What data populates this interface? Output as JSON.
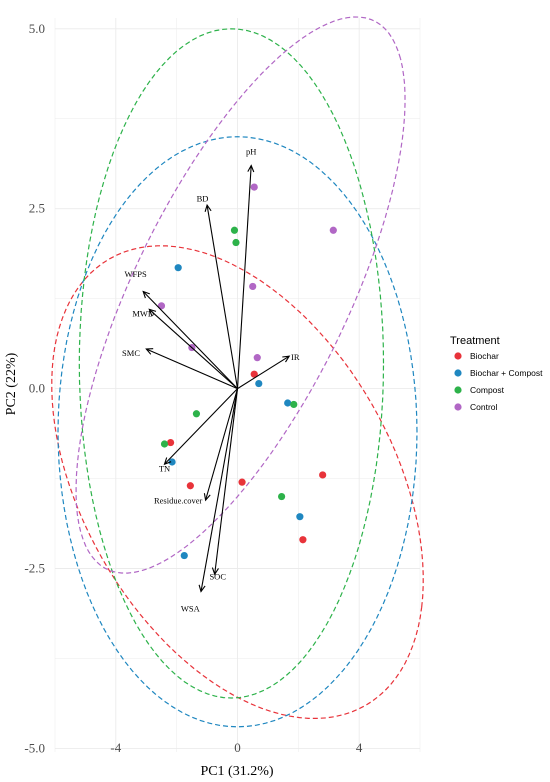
{
  "chart_data": {
    "type": "scatter",
    "subtype": "pca-biplot",
    "xlabel": "PC1 (31.2%)",
    "ylabel": "PC2 (22%)",
    "xlim": [
      -6.0,
      6.0
    ],
    "ylim": [
      -5.05,
      5.15
    ],
    "x_ticks": [
      -4,
      0,
      4
    ],
    "x_tick_labels": [
      "-4",
      "0",
      "4"
    ],
    "y_ticks": [
      5.0,
      2.5,
      0.0,
      -2.5,
      -5.0
    ],
    "y_tick_labels": [
      "5.0",
      "2.5",
      "0.0",
      "-2.5",
      "-5.0"
    ],
    "grid": true,
    "legend": {
      "title": "Treatment",
      "placement": "right",
      "entries": [
        "Biochar",
        "Biochar + Compost",
        "Compost",
        "Control"
      ]
    },
    "series": [
      {
        "name": "Biochar",
        "color": "#e8333a",
        "points": [
          [
            0.55,
            0.2
          ],
          [
            -2.2,
            -0.75
          ],
          [
            -1.55,
            -1.35
          ],
          [
            0.15,
            -1.3
          ],
          [
            2.8,
            -1.2
          ],
          [
            2.15,
            -2.1
          ]
        ],
        "ellipse": {
          "cx": 0.0,
          "cy": -1.3,
          "rx": 6.3,
          "ry": 2.9,
          "angle_deg": -16
        }
      },
      {
        "name": "Biochar + Compost",
        "color": "#1f87c0",
        "points": [
          [
            -1.95,
            1.68
          ],
          [
            0.7,
            0.07
          ],
          [
            1.65,
            -0.2
          ],
          [
            -2.15,
            -1.02
          ],
          [
            2.05,
            -1.78
          ],
          [
            -1.75,
            -2.32
          ]
        ],
        "ellipse": {
          "cx": 0.0,
          "cy": -0.6,
          "rx": 5.9,
          "ry": 4.1,
          "angle_deg": 0
        }
      },
      {
        "name": "Compost",
        "color": "#2db24a",
        "points": [
          [
            -0.1,
            2.2
          ],
          [
            -0.05,
            2.03
          ],
          [
            1.85,
            -0.22
          ],
          [
            -1.35,
            -0.35
          ],
          [
            -2.4,
            -0.77
          ],
          [
            1.45,
            -1.5
          ]
        ],
        "ellipse": {
          "cx": -0.2,
          "cy": 0.35,
          "rx": 5.0,
          "ry": 4.65,
          "angle_deg": 0
        }
      },
      {
        "name": "Control",
        "color": "#b167c5",
        "points": [
          [
            0.55,
            2.8
          ],
          [
            3.15,
            2.2
          ],
          [
            0.5,
            1.42
          ],
          [
            -2.5,
            1.15
          ],
          [
            -1.5,
            0.57
          ],
          [
            0.65,
            0.43
          ]
        ],
        "ellipse": {
          "cx": 0.1,
          "cy": 1.3,
          "rx": 6.2,
          "ry": 2.4,
          "angle_deg": 32
        }
      }
    ],
    "loadings": [
      {
        "label": "pH",
        "x": 0.45,
        "y": 3.1,
        "label_x": 0.45,
        "label_y": 3.25
      },
      {
        "label": "BD",
        "x": -1.0,
        "y": 2.55,
        "label_x": -1.15,
        "label_y": 2.6
      },
      {
        "label": "WFPS",
        "x": -3.1,
        "y": 1.35,
        "label_x": -3.35,
        "label_y": 1.55
      },
      {
        "label": "MWD",
        "x": -2.9,
        "y": 1.1,
        "label_x": -3.1,
        "label_y": 1.0
      },
      {
        "label": "SMC",
        "x": -3.0,
        "y": 0.55,
        "label_x": -3.5,
        "label_y": 0.45
      },
      {
        "label": "IR",
        "x": 1.7,
        "y": 0.45,
        "label_x": 1.9,
        "label_y": 0.4
      },
      {
        "label": "TN",
        "x": -2.4,
        "y": -1.05,
        "label_x": -2.4,
        "label_y": -1.15
      },
      {
        "label": "Residue.cover",
        "x": -1.05,
        "y": -1.55,
        "label_x": -1.95,
        "label_y": -1.6
      },
      {
        "label": "SOC",
        "x": -0.75,
        "y": -2.58,
        "label_x": -0.65,
        "label_y": -2.65
      },
      {
        "label": "WSA",
        "x": -1.2,
        "y": -2.82,
        "label_x": -1.55,
        "label_y": -3.1
      }
    ]
  }
}
